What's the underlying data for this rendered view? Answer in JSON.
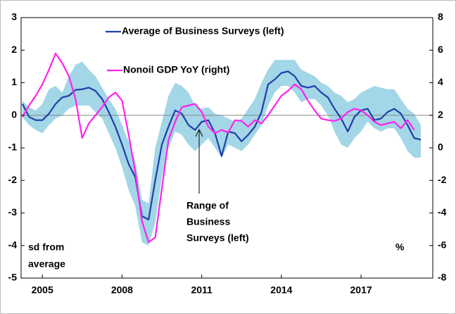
{
  "chart_data": {
    "type": "line",
    "x": [
      2004.25,
      2004.5,
      2004.75,
      2005,
      2005.25,
      2005.5,
      2005.75,
      2006,
      2006.25,
      2006.5,
      2006.75,
      2007,
      2007.25,
      2007.5,
      2007.75,
      2008,
      2008.25,
      2008.5,
      2008.75,
      2009,
      2009.25,
      2009.5,
      2009.75,
      2010,
      2010.25,
      2010.5,
      2010.75,
      2011,
      2011.25,
      2011.5,
      2011.75,
      2012,
      2012.25,
      2012.5,
      2012.75,
      2013,
      2013.25,
      2013.5,
      2013.75,
      2014,
      2014.25,
      2014.5,
      2014.75,
      2015,
      2015.25,
      2015.5,
      2015.75,
      2016,
      2016.25,
      2016.5,
      2016.75,
      2017,
      2017.25,
      2017.5,
      2017.75,
      2018,
      2018.25,
      2018.5,
      2018.75,
      2019,
      2019.25
    ],
    "series": [
      {
        "name": "Average of Business Surveys (left)",
        "color": "#1f3fa8",
        "axis": "y",
        "values": [
          0.35,
          -0.05,
          -0.15,
          -0.15,
          0.05,
          0.35,
          0.55,
          0.6,
          0.78,
          0.8,
          0.85,
          0.75,
          0.5,
          0.1,
          -0.35,
          -0.9,
          -1.5,
          -1.9,
          -3.1,
          -3.2,
          -2.0,
          -0.9,
          -0.35,
          0.15,
          0.05,
          -0.3,
          -0.45,
          -0.2,
          -0.15,
          -0.55,
          -1.25,
          -0.5,
          -0.55,
          -0.8,
          -0.6,
          -0.35,
          0.1,
          0.95,
          1.1,
          1.3,
          1.35,
          1.2,
          0.9,
          0.85,
          0.9,
          0.7,
          0.55,
          0.2,
          -0.1,
          -0.5,
          -0.05,
          0.15,
          0.2,
          -0.15,
          -0.1,
          0.1,
          0.2,
          0.05,
          -0.3,
          -0.7,
          -0.75
        ]
      },
      {
        "name": "Nonoil GDP YoY (right)",
        "color": "#ff22ee",
        "axis": "y2",
        "values": [
          1.9,
          2.6,
          3.2,
          3.9,
          4.8,
          5.8,
          5.2,
          4.4,
          3.0,
          0.6,
          1.5,
          2.0,
          2.5,
          3.1,
          3.4,
          2.9,
          0.8,
          -1.5,
          -4.5,
          -5.8,
          -5.5,
          -2.5,
          0.5,
          1.6,
          2.5,
          2.6,
          2.7,
          2.2,
          1.3,
          0.9,
          1.1,
          0.95,
          1.7,
          1.65,
          1.3,
          1.7,
          1.5,
          2.0,
          2.6,
          3.2,
          3.5,
          3.9,
          3.6,
          2.9,
          2.3,
          1.8,
          1.7,
          1.65,
          1.8,
          2.2,
          2.4,
          2.3,
          2.0,
          1.6,
          1.4,
          1.5,
          1.6,
          1.2,
          1.7,
          1.1,
          null
        ]
      }
    ],
    "band": {
      "color": "#a3d6e6",
      "high": [
        0.45,
        0.25,
        0.15,
        0.35,
        0.8,
        0.9,
        0.7,
        1.2,
        1.55,
        1.65,
        1.4,
        1.2,
        0.85,
        0.5,
        0.2,
        -0.3,
        -0.8,
        -1.4,
        -2.6,
        -2.7,
        -1.0,
        -0.2,
        0.6,
        1.0,
        0.9,
        0.7,
        0.3,
        0.2,
        0.25,
        0.05,
        0.0,
        -0.1,
        -0.2,
        -0.1,
        0.2,
        0.5,
        1.0,
        1.4,
        1.7,
        1.7,
        1.7,
        1.7,
        1.4,
        1.3,
        1.2,
        1.0,
        0.9,
        0.7,
        0.6,
        0.4,
        0.5,
        0.7,
        0.8,
        0.9,
        0.85,
        0.8,
        0.8,
        0.5,
        0.2,
        0.05,
        -0.3
      ],
      "low": [
        -0.05,
        -0.3,
        -0.45,
        -0.55,
        -0.3,
        -0.1,
        0.0,
        0.2,
        0.3,
        0.3,
        0.3,
        0.1,
        -0.1,
        -0.55,
        -1.0,
        -1.6,
        -2.3,
        -2.8,
        -3.9,
        -4.0,
        -3.3,
        -1.9,
        -1.0,
        -0.5,
        -0.6,
        -0.9,
        -1.1,
        -0.9,
        -0.7,
        -1.0,
        -1.3,
        -0.9,
        -1.0,
        -1.1,
        -0.9,
        -0.6,
        -0.3,
        0.3,
        0.7,
        0.9,
        0.9,
        0.7,
        0.4,
        0.5,
        0.5,
        0.3,
        0.0,
        -0.5,
        -0.9,
        -1.0,
        -0.7,
        -0.5,
        -0.2,
        -0.4,
        -0.5,
        -0.4,
        -0.4,
        -0.7,
        -1.1,
        -1.3,
        -1.3
      ]
    },
    "xlim": [
      2004.2,
      2019.7
    ],
    "xticks": [
      2005,
      2008,
      2011,
      2014,
      2017
    ],
    "ylim": [
      -5,
      3
    ],
    "yticks": [
      -5,
      -4,
      -3,
      -2,
      -1,
      0,
      1,
      2,
      3
    ],
    "y2lim": [
      -8,
      8
    ],
    "y2ticks": [
      -8,
      -6,
      -4,
      -2,
      0,
      2,
      4,
      6,
      8
    ],
    "zero_line": true,
    "annotations": {
      "range": [
        "Range of",
        "Business",
        "Surveys (left)"
      ],
      "left_unit": [
        "sd from",
        "average"
      ],
      "right_unit": "%"
    }
  }
}
